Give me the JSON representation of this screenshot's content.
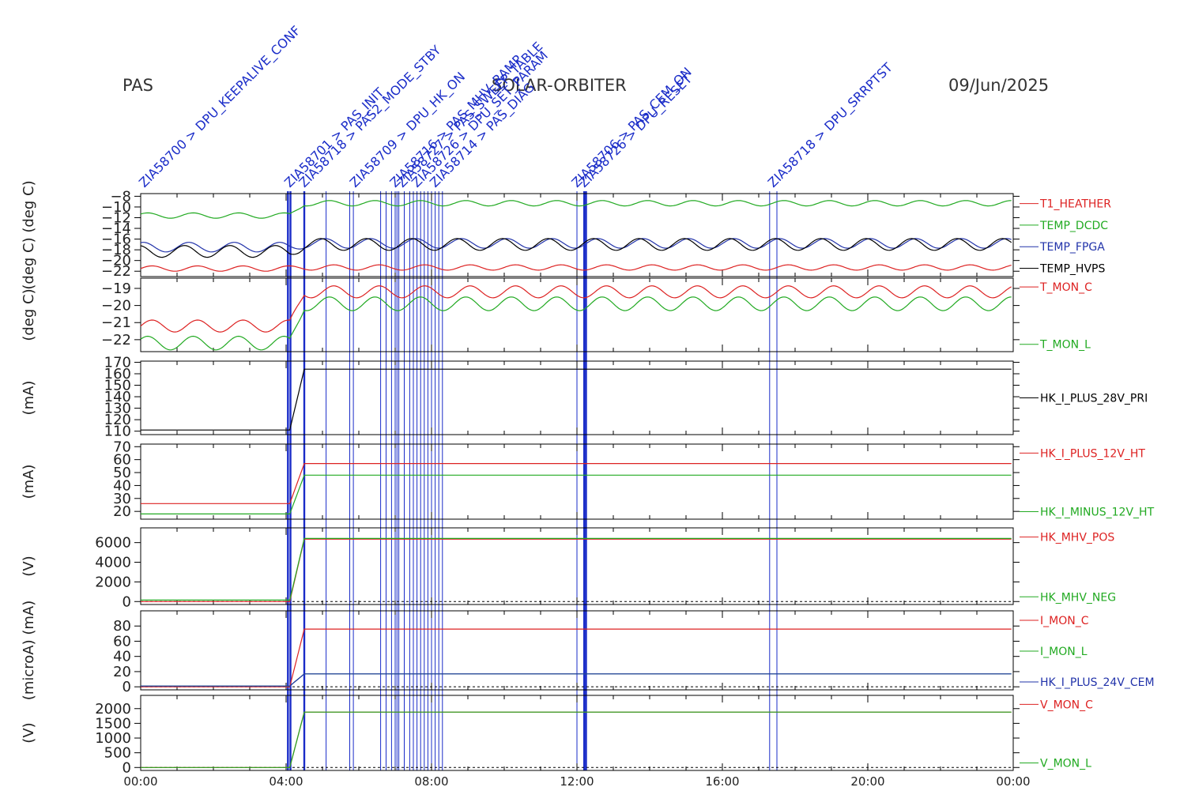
{
  "header": {
    "left": "PAS",
    "center": "SOLAR-ORBITER",
    "right": "09/Jun/2025"
  },
  "colors": {
    "red": "#dd2222",
    "green": "#22aa22",
    "blue": "#2233aa",
    "black": "#000000",
    "event": "#1a2cc8"
  },
  "chart_data": {
    "type": "line",
    "x_axis": {
      "ticks": [
        "00:00",
        "04:00",
        "08:00",
        "12:00",
        "16:00",
        "20:00",
        "00:00"
      ],
      "range_hours": [
        0,
        24
      ]
    },
    "event_markers": {
      "hours": [
        4.05,
        4.12,
        4.5,
        5.1,
        5.75,
        5.85,
        6.6,
        6.75,
        6.9,
        7.0,
        7.05,
        7.1,
        7.25,
        7.4,
        7.5,
        7.6,
        7.7,
        7.8,
        7.9,
        8.0,
        8.1,
        8.2,
        8.3,
        12.0,
        12.2,
        12.25,
        17.3,
        17.5
      ],
      "labels": [
        "ZIA58700 > DPU_KEEPALIVE_CONF",
        "ZIA58701 > PAS_INIT",
        "ZIA58718 > PAS2_MODE_STBY",
        "ZIA58709 > DPU_HK_ON",
        "ZIA58716 > PAS_MHV_RAMP",
        "ZIA58727 > PAS_SWEEP_TABLE",
        "ZIA58726 > DPU_SET_PARAM",
        "ZIA58714 > PAS_DIAG",
        "ZIA58706 > PAS_CEM_ON",
        "ZIA58726 > DPU_RESET",
        "ZIA58718 > DPU_SRRPTST"
      ]
    },
    "panels": [
      {
        "id": "temperatures",
        "ylabel": "(deg C) (deg C)",
        "ylim": [
          -23,
          -7.5
        ],
        "yticks": [
          -8,
          -10,
          -12,
          -14,
          -16,
          -18,
          -20,
          -22
        ],
        "series": [
          {
            "name": "T1_HEATHER",
            "color": "red",
            "before": -21.5,
            "after": -21.3,
            "amp": 0.5
          },
          {
            "name": "TEMP_DCDC",
            "color": "green",
            "before": -11.6,
            "after": -9.3,
            "amp": 0.5
          },
          {
            "name": "TEMP_FPGA",
            "color": "blue",
            "before": -17.5,
            "after": -16.8,
            "amp": 0.9
          },
          {
            "name": "TEMP_HVPS",
            "color": "black",
            "before": -18.3,
            "after": -17.0,
            "amp": 1.1
          }
        ]
      },
      {
        "id": "monitor-temps",
        "ylabel": "(deg C)",
        "ylim": [
          -22.7,
          -18.4
        ],
        "yticks": [
          -19,
          -20,
          -21,
          -22
        ],
        "series": [
          {
            "name": "T_MON_C",
            "color": "red",
            "before": -21.2,
            "after": -19.2,
            "amp": 0.35
          },
          {
            "name": "T_MON_L",
            "color": "green",
            "before": -22.2,
            "after": -19.9,
            "amp": 0.4
          }
        ]
      },
      {
        "id": "current-28v",
        "ylabel": "(mA)",
        "ylim": [
          107,
          171
        ],
        "yticks": [
          170,
          160,
          150,
          140,
          130,
          120,
          110
        ],
        "series": [
          {
            "name": "HK_I_PLUS_28V_PRI",
            "color": "black",
            "before": 111,
            "after": 164,
            "amp": 0
          }
        ]
      },
      {
        "id": "current-12v",
        "ylabel": "(mA)",
        "ylim": [
          14,
          72
        ],
        "yticks": [
          70,
          60,
          50,
          40,
          30,
          20
        ],
        "series": [
          {
            "name": "HK_I_PLUS_12V_HT",
            "color": "red",
            "before": 26,
            "after": 57,
            "amp": 0
          },
          {
            "name": "HK_I_MINUS_12V_HT",
            "color": "green",
            "before": 18,
            "after": 48,
            "amp": 0
          }
        ]
      },
      {
        "id": "mhv",
        "ylabel": "(V)",
        "ylim": [
          -300,
          7500
        ],
        "yticks": [
          6000,
          4000,
          2000,
          0
        ],
        "series": [
          {
            "name": "HK_MHV_POS",
            "color": "red",
            "before": 0,
            "after": 6350,
            "amp": 0
          },
          {
            "name": "HK_MHV_NEG",
            "color": "green",
            "before": 150,
            "after": 6420,
            "amp": 0
          }
        ]
      },
      {
        "id": "currents-mon",
        "ylabel": "(microA) (mA)",
        "ylim": [
          -4,
          100
        ],
        "yticks": [
          80,
          60,
          40,
          20,
          0
        ],
        "series": [
          {
            "name": "I_MON_C",
            "color": "red",
            "before": 0,
            "after": 76,
            "amp": 0
          },
          {
            "name": "I_MON_L",
            "color": "green",
            "before": 1,
            "after": 17,
            "amp": 0
          },
          {
            "name": "HK_I_PLUS_24V_CEM",
            "color": "blue",
            "before": 1,
            "after": 17,
            "amp": 0
          }
        ]
      },
      {
        "id": "voltages-mon",
        "ylabel": "(V)",
        "ylim": [
          -100,
          2450
        ],
        "yticks": [
          2000,
          1500,
          1000,
          500,
          0
        ],
        "series": [
          {
            "name": "V_MON_C",
            "color": "red",
            "before": 0,
            "after": 1880,
            "amp": 0
          },
          {
            "name": "V_MON_L",
            "color": "green",
            "before": 0,
            "after": 1880,
            "amp": 0
          }
        ]
      }
    ]
  }
}
